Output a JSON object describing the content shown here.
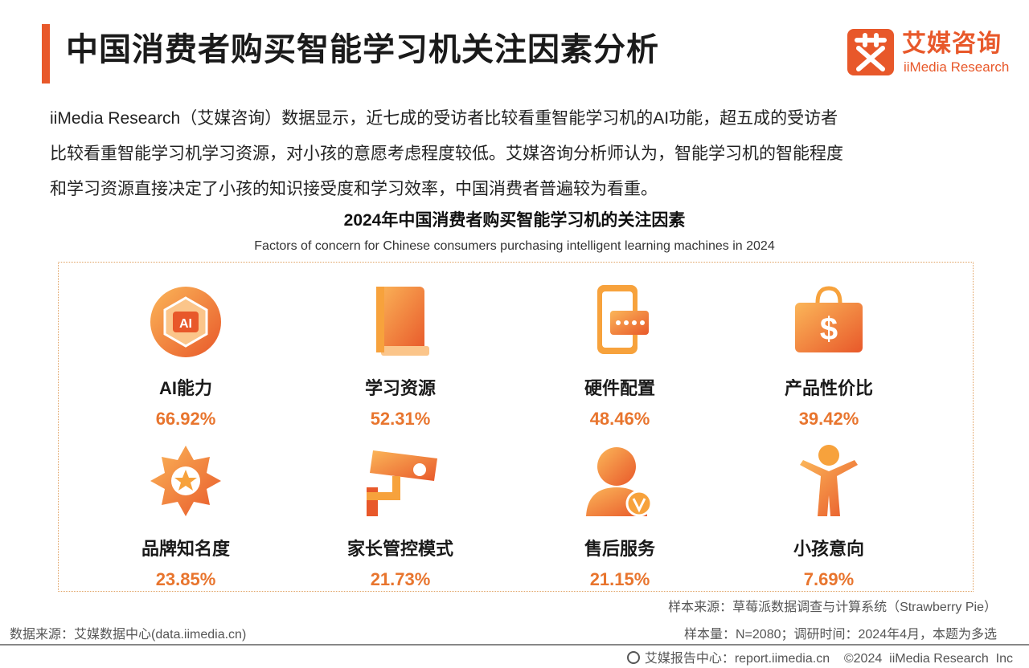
{
  "header": {
    "title": "中国消费者购买智能学习机关注因素分析",
    "logo_cn": "艾媒咨询",
    "logo_en": "iiMedia Research",
    "accent_color": "#e8582a"
  },
  "intro": {
    "line1": "iiMedia Research（艾媒咨询）数据显示，近七成的受访者比较看重智能学习机的AI功能，超五成的受访者",
    "line2": "比较看重智能学习机学习资源，对小孩的意愿考虑程度较低。艾媒咨询分析师认为，智能学习机的智能程度",
    "line3": "和学习资源直接决定了小孩的知识接受度和学习效率，中国消费者普遍较为看重。"
  },
  "chart_data": {
    "type": "table",
    "title": "2024年中国消费者购买智能学习机的关注因素",
    "subtitle": "Factors of concern for Chinese consumers purchasing intelligent learning machines in 2024",
    "items": [
      {
        "label": "AI能力",
        "value": "66.92%",
        "pct": 66.92,
        "icon": "ai-chip-icon"
      },
      {
        "label": "学习资源",
        "value": "52.31%",
        "pct": 52.31,
        "icon": "book-icon"
      },
      {
        "label": "硬件配置",
        "value": "48.46%",
        "pct": 48.46,
        "icon": "device-icon"
      },
      {
        "label": "产品性价比",
        "value": "39.42%",
        "pct": 39.42,
        "icon": "money-bag-icon"
      },
      {
        "label": "品牌知名度",
        "value": "23.85%",
        "pct": 23.85,
        "icon": "badge-icon"
      },
      {
        "label": "家长管控模式",
        "value": "21.73%",
        "pct": 21.73,
        "icon": "camera-icon"
      },
      {
        "label": "售后服务",
        "value": "21.15%",
        "pct": 21.15,
        "icon": "service-person-icon"
      },
      {
        "label": "小孩意向",
        "value": "7.69%",
        "pct": 7.69,
        "icon": "child-icon"
      }
    ],
    "colors": {
      "value": "#e8752e",
      "icon_light": "#f7a23c",
      "icon_dark": "#e8582a"
    }
  },
  "sources": {
    "sample_source": "样本来源：草莓派数据调查与计算系统（Strawberry Pie）",
    "sample_size": "样本量：N=2080；调研时间：2024年4月，本题为多选",
    "data_source": "数据来源：艾媒数据中心(data.iimedia.cn)"
  },
  "footer": {
    "text": "艾媒报告中心：report.iimedia.cn    ©2024  iiMedia Research  Inc"
  }
}
